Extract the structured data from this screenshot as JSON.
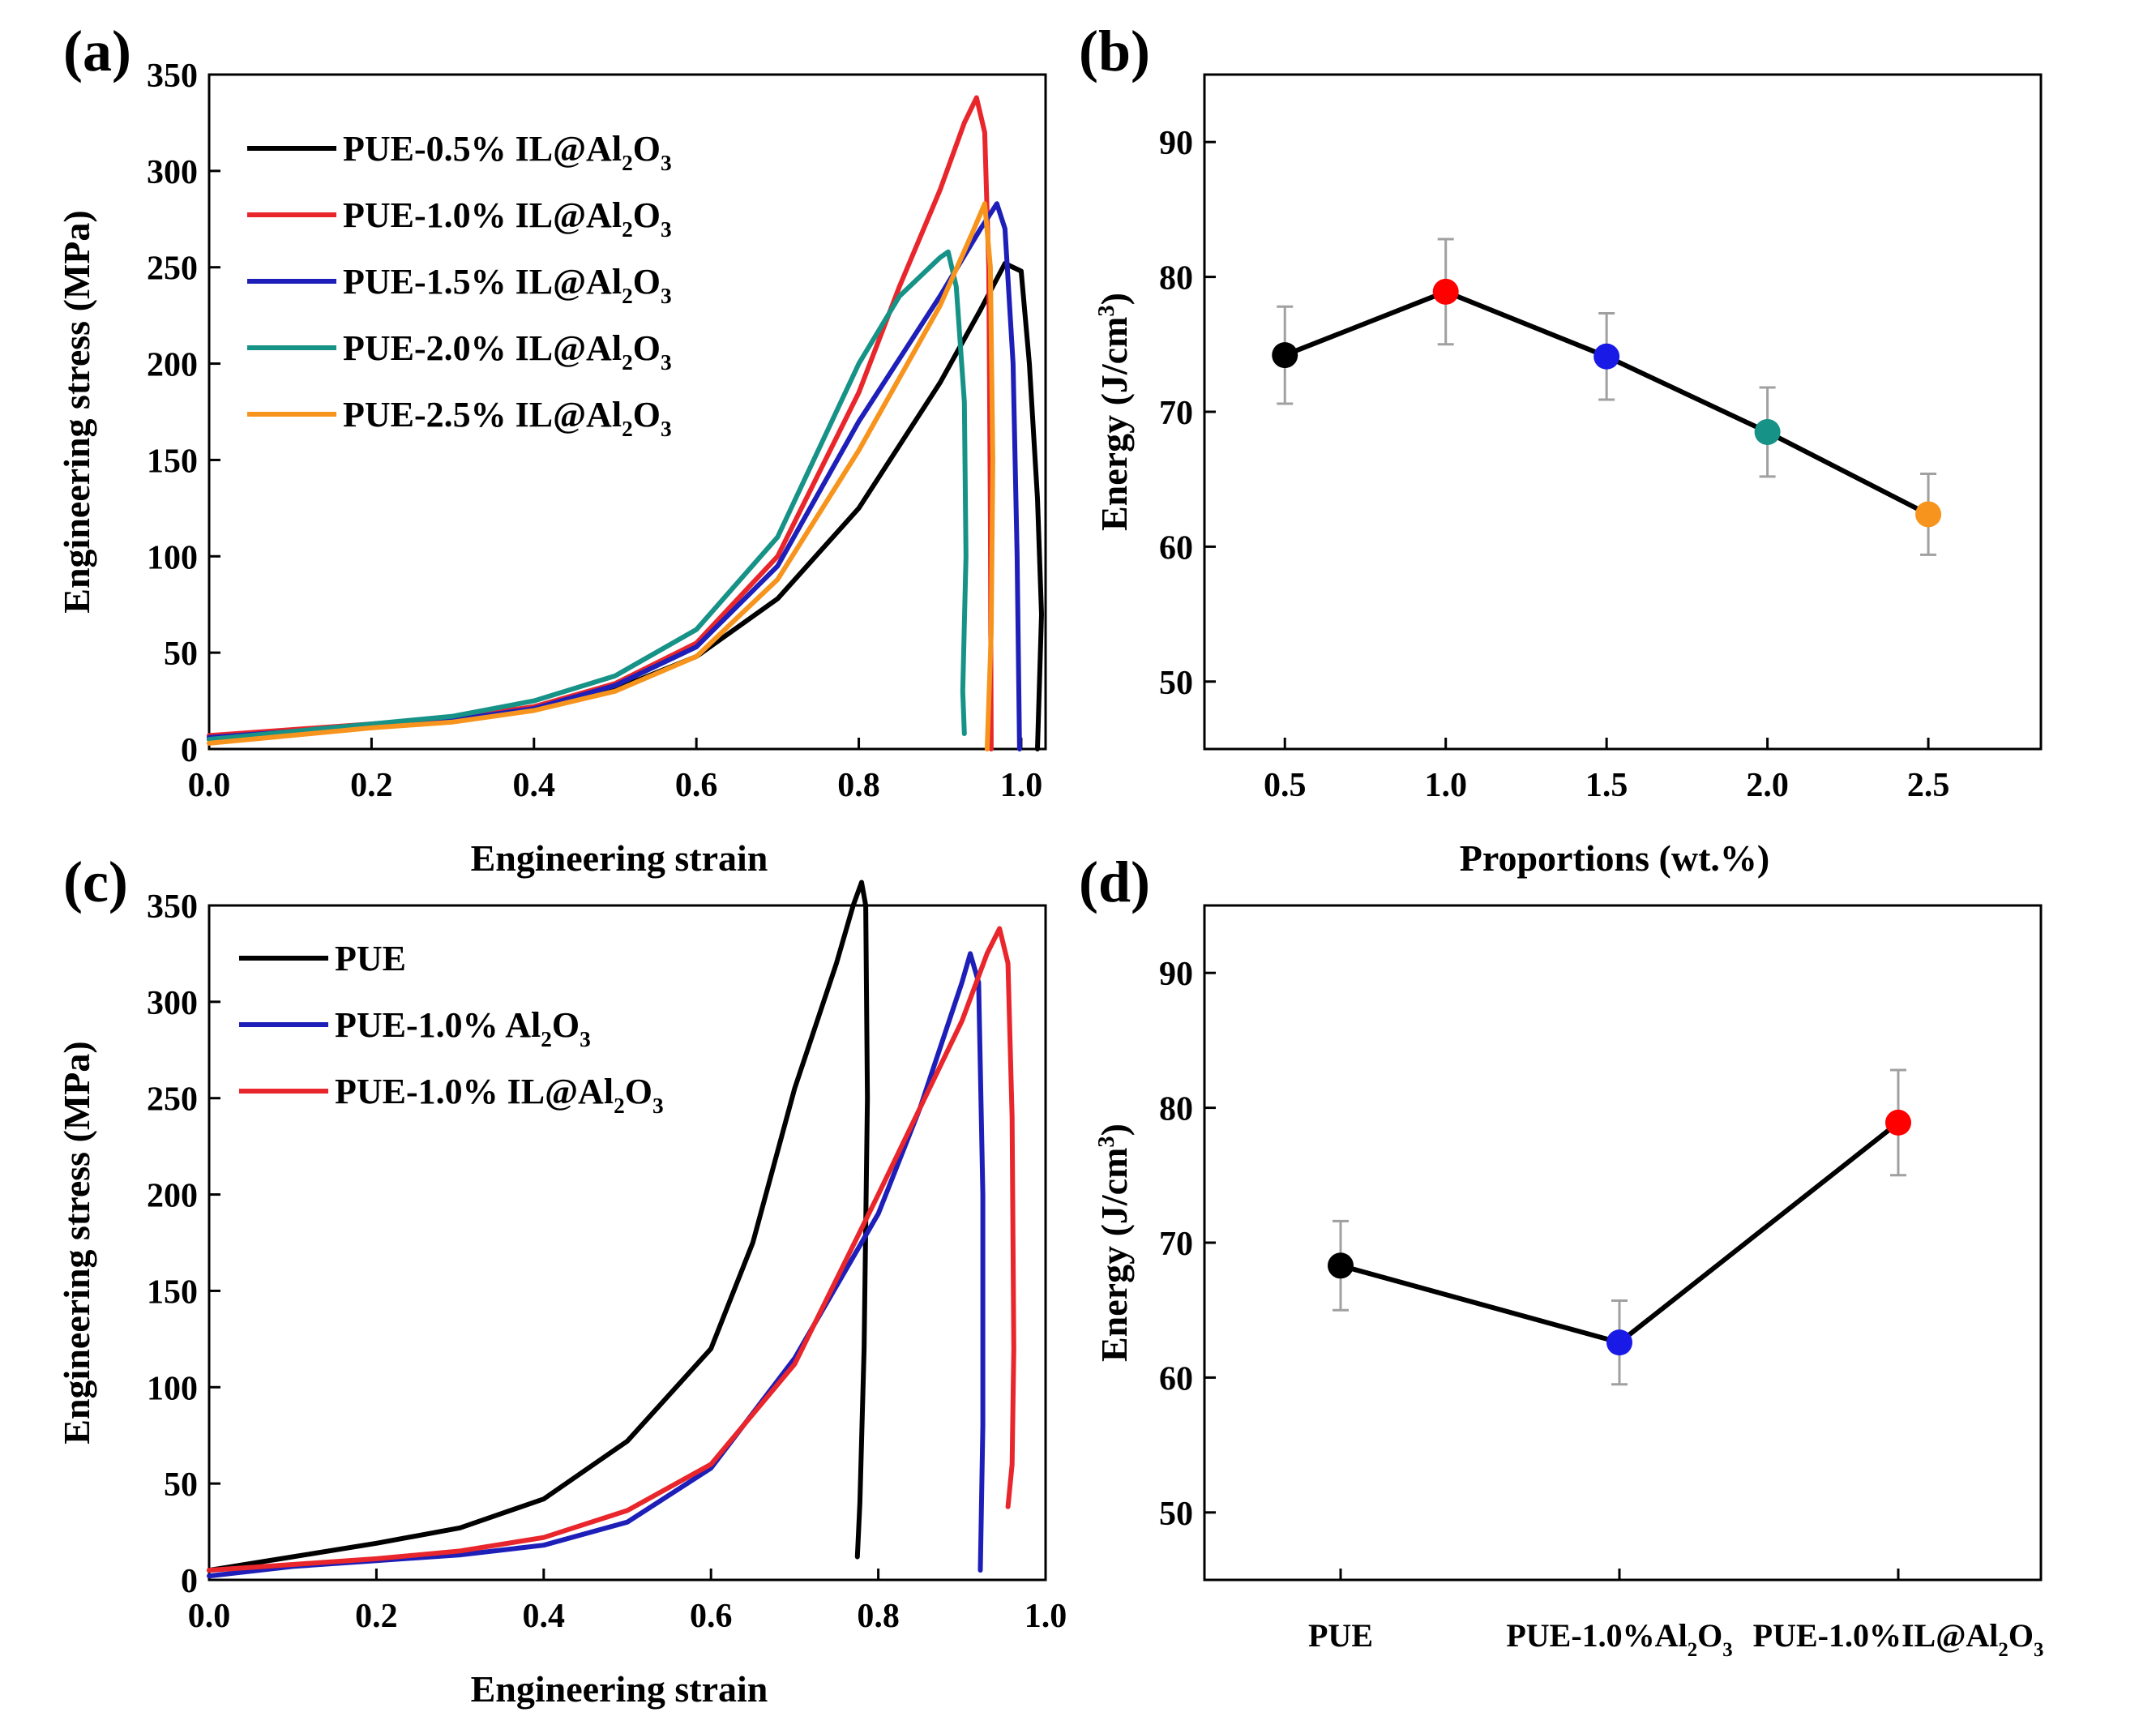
{
  "chart_data": [
    {
      "panel": "(a)",
      "type": "line",
      "xlabel": "Engineering strain",
      "ylabel": "Engineering stress (MPa)",
      "xlim": [
        0,
        1.03
      ],
      "ylim": [
        0,
        350
      ],
      "xticks": [
        "0.0",
        "0.2",
        "0.4",
        "0.6",
        "0.8",
        "1.0"
      ],
      "yticks": [
        "0",
        "50",
        "100",
        "150",
        "200",
        "250",
        "300",
        "350"
      ],
      "legend_position": "top-left",
      "series": [
        {
          "name": "PUE-0.5% IL@Al2O3",
          "label": {
            "pre": "PUE-0.5% IL@Al",
            "sub1": "2",
            "mid": "O",
            "sub2": "3"
          },
          "color": "#000000",
          "points": [
            [
              0.0,
              5
            ],
            [
              0.1,
              9
            ],
            [
              0.2,
              12
            ],
            [
              0.3,
              15
            ],
            [
              0.4,
              21
            ],
            [
              0.5,
              31
            ],
            [
              0.6,
              48
            ],
            [
              0.7,
              78
            ],
            [
              0.8,
              125
            ],
            [
              0.9,
              190
            ],
            [
              0.95,
              228
            ],
            [
              0.98,
              252
            ],
            [
              1.0,
              248
            ],
            [
              1.01,
              200
            ],
            [
              1.02,
              130
            ],
            [
              1.025,
              70
            ],
            [
              1.02,
              0
            ]
          ]
        },
        {
          "name": "PUE-1.0% IL@Al2O3",
          "label": {
            "pre": "PUE-1.0% IL@Al",
            "sub1": "2",
            "mid": "O",
            "sub2": "3"
          },
          "color": "#e8262b",
          "points": [
            [
              0.0,
              7
            ],
            [
              0.1,
              10
            ],
            [
              0.2,
              13
            ],
            [
              0.3,
              16
            ],
            [
              0.4,
              22
            ],
            [
              0.5,
              34
            ],
            [
              0.6,
              55
            ],
            [
              0.7,
              100
            ],
            [
              0.8,
              185
            ],
            [
              0.85,
              240
            ],
            [
              0.9,
              290
            ],
            [
              0.93,
              325
            ],
            [
              0.945,
              338
            ],
            [
              0.955,
              320
            ],
            [
              0.96,
              250
            ],
            [
              0.962,
              120
            ],
            [
              0.963,
              0
            ]
          ]
        },
        {
          "name": "PUE-1.5% IL@Al2O3",
          "label": {
            "pre": "PUE-1.5% IL@Al",
            "sub1": "2",
            "mid": "O",
            "sub2": "3"
          },
          "color": "#1d1fb8",
          "points": [
            [
              0.0,
              6
            ],
            [
              0.1,
              9
            ],
            [
              0.2,
              12
            ],
            [
              0.3,
              15
            ],
            [
              0.4,
              21
            ],
            [
              0.5,
              33
            ],
            [
              0.6,
              53
            ],
            [
              0.7,
              95
            ],
            [
              0.8,
              170
            ],
            [
              0.9,
              235
            ],
            [
              0.95,
              270
            ],
            [
              0.97,
              283
            ],
            [
              0.98,
              270
            ],
            [
              0.99,
              200
            ],
            [
              0.995,
              100
            ],
            [
              0.998,
              0
            ]
          ]
        },
        {
          "name": "PUE-2.0% IL@Al2O3",
          "label": {
            "pre": "PUE-2.0% IL@Al",
            "sub1": "2",
            "mid": "O",
            "sub2": "3"
          },
          "color": "#169287",
          "points": [
            [
              0.0,
              5
            ],
            [
              0.1,
              9
            ],
            [
              0.2,
              13
            ],
            [
              0.3,
              17
            ],
            [
              0.4,
              25
            ],
            [
              0.5,
              38
            ],
            [
              0.6,
              62
            ],
            [
              0.7,
              110
            ],
            [
              0.8,
              200
            ],
            [
              0.85,
              235
            ],
            [
              0.9,
              255
            ],
            [
              0.91,
              258
            ],
            [
              0.92,
              240
            ],
            [
              0.93,
              180
            ],
            [
              0.932,
              100
            ],
            [
              0.928,
              30
            ],
            [
              0.93,
              8
            ]
          ]
        },
        {
          "name": "PUE-2.5% IL@Al2O3",
          "label": {
            "pre": "PUE-2.5% IL@Al",
            "sub1": "2",
            "mid": "O",
            "sub2": "3"
          },
          "color": "#f7941d",
          "points": [
            [
              0.0,
              3
            ],
            [
              0.1,
              7
            ],
            [
              0.2,
              11
            ],
            [
              0.3,
              14
            ],
            [
              0.4,
              20
            ],
            [
              0.5,
              30
            ],
            [
              0.6,
              48
            ],
            [
              0.7,
              88
            ],
            [
              0.8,
              155
            ],
            [
              0.9,
              230
            ],
            [
              0.94,
              268
            ],
            [
              0.955,
              283
            ],
            [
              0.962,
              250
            ],
            [
              0.965,
              150
            ],
            [
              0.963,
              60
            ],
            [
              0.958,
              0
            ]
          ]
        }
      ]
    },
    {
      "panel": "(b)",
      "type": "scatter",
      "xlabel": "Proportions (wt.%)",
      "ylabel": {
        "pre": "Energy (J/cm",
        "sup": "3",
        "post": ")"
      },
      "xlim": [
        0.25,
        2.85
      ],
      "ylim": [
        45,
        95
      ],
      "xticks": [
        "0.5",
        "1.0",
        "1.5",
        "2.0",
        "2.5"
      ],
      "yticks": [
        "50",
        "60",
        "70",
        "80",
        "90"
      ],
      "points": [
        {
          "x": 0.5,
          "y": 74.2,
          "err": 3.6,
          "color": "#000000"
        },
        {
          "x": 1.0,
          "y": 78.9,
          "err": 3.9,
          "color": "#ff0000"
        },
        {
          "x": 1.5,
          "y": 74.1,
          "err": 3.2,
          "color": "#1a1ae6"
        },
        {
          "x": 2.0,
          "y": 68.5,
          "err": 3.3,
          "color": "#169287"
        },
        {
          "x": 2.5,
          "y": 62.4,
          "err": 3.0,
          "color": "#f7941d"
        }
      ]
    },
    {
      "panel": "(c)",
      "type": "line",
      "xlabel": "Engineering strain",
      "ylabel": "Engineering stress (MPa)",
      "xlim": [
        0,
        1.0
      ],
      "ylim": [
        0,
        350
      ],
      "xticks": [
        "0.0",
        "0.2",
        "0.4",
        "0.6",
        "0.8",
        "1.0"
      ],
      "yticks": [
        "0",
        "50",
        "100",
        "150",
        "200",
        "250",
        "300",
        "350"
      ],
      "legend_position": "top-left",
      "series": [
        {
          "name": "PUE",
          "label": {
            "pre": "PUE",
            "sub1": "",
            "mid": "",
            "sub2": ""
          },
          "color": "#000000",
          "points": [
            [
              0.0,
              5
            ],
            [
              0.1,
              12
            ],
            [
              0.2,
              19
            ],
            [
              0.3,
              27
            ],
            [
              0.4,
              42
            ],
            [
              0.5,
              72
            ],
            [
              0.6,
              120
            ],
            [
              0.65,
              175
            ],
            [
              0.7,
              255
            ],
            [
              0.75,
              320
            ],
            [
              0.77,
              350
            ],
            [
              0.78,
              362
            ],
            [
              0.785,
              350
            ],
            [
              0.787,
              250
            ],
            [
              0.783,
              120
            ],
            [
              0.778,
              40
            ],
            [
              0.775,
              12
            ]
          ]
        },
        {
          "name": "PUE-1.0% Al2O3",
          "label": {
            "pre": "PUE-1.0% Al",
            "sub1": "2",
            "mid": "O",
            "sub2": "3"
          },
          "color": "#1d1fb8",
          "points": [
            [
              0.0,
              2
            ],
            [
              0.1,
              7
            ],
            [
              0.2,
              10
            ],
            [
              0.3,
              13
            ],
            [
              0.4,
              18
            ],
            [
              0.5,
              30
            ],
            [
              0.6,
              58
            ],
            [
              0.7,
              115
            ],
            [
              0.8,
              190
            ],
            [
              0.85,
              245
            ],
            [
              0.9,
              310
            ],
            [
              0.91,
              325
            ],
            [
              0.92,
              310
            ],
            [
              0.925,
              200
            ],
            [
              0.925,
              80
            ],
            [
              0.922,
              5
            ]
          ]
        },
        {
          "name": "PUE-1.0% IL@Al2O3",
          "label": {
            "pre": "PUE-1.0% IL@Al",
            "sub1": "2",
            "mid": "O",
            "sub2": "3"
          },
          "color": "#e8262b",
          "points": [
            [
              0.0,
              5
            ],
            [
              0.1,
              8
            ],
            [
              0.2,
              11
            ],
            [
              0.3,
              15
            ],
            [
              0.4,
              22
            ],
            [
              0.5,
              36
            ],
            [
              0.6,
              60
            ],
            [
              0.7,
              112
            ],
            [
              0.8,
              200
            ],
            [
              0.9,
              290
            ],
            [
              0.93,
              325
            ],
            [
              0.945,
              338
            ],
            [
              0.955,
              320
            ],
            [
              0.96,
              240
            ],
            [
              0.962,
              120
            ],
            [
              0.96,
              60
            ],
            [
              0.955,
              38
            ]
          ]
        }
      ]
    },
    {
      "panel": "(d)",
      "type": "scatter",
      "xlabel": "",
      "ylabel": {
        "pre": "Energy (J/cm",
        "sup": "3",
        "post": ")"
      },
      "ylim": [
        45,
        95
      ],
      "yticks": [
        "50",
        "60",
        "70",
        "80",
        "90"
      ],
      "categories": [
        {
          "pre": "PUE",
          "sub1": "",
          "mid": "",
          "sub2": ""
        },
        {
          "pre": "PUE-1.0%Al",
          "sub1": "2",
          "mid": "O",
          "sub2": "3"
        },
        {
          "pre": "PUE-1.0%IL@Al",
          "sub1": "2",
          "mid": "O",
          "sub2": "3"
        }
      ],
      "points": [
        {
          "x": 0,
          "y": 68.3,
          "err": 3.3,
          "color": "#000000"
        },
        {
          "x": 1,
          "y": 62.6,
          "err": 3.1,
          "color": "#1a1ae6"
        },
        {
          "x": 2,
          "y": 78.9,
          "err": 3.9,
          "color": "#ff0000"
        }
      ]
    }
  ]
}
